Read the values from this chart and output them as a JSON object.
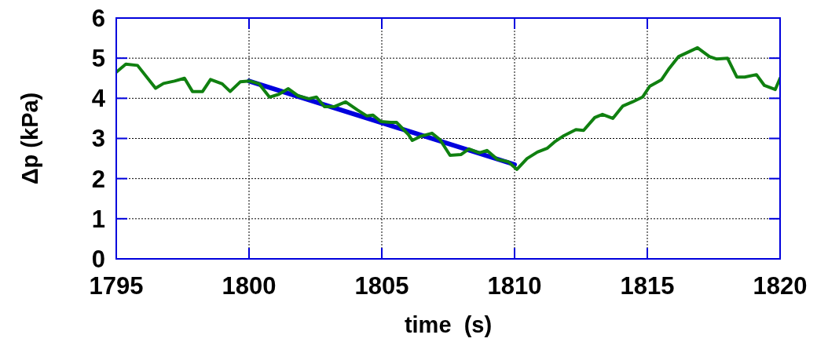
{
  "chart_data": {
    "type": "line",
    "xlabel": "time  (s)",
    "ylabel": "Δp (kPa)",
    "xlim": [
      1795,
      1820
    ],
    "xticks": [
      1795,
      1800,
      1805,
      1810,
      1815,
      1820
    ],
    "ylim": [
      0,
      6
    ],
    "yticks": [
      0,
      1,
      2,
      3,
      4,
      5,
      6
    ],
    "grid": true,
    "line_style": "solid",
    "series": [
      {
        "color": "#108010",
        "x": [
          1795.0,
          1795.36,
          1795.8,
          1796.48,
          1796.78,
          1797.19,
          1797.57,
          1797.87,
          1798.25,
          1798.55,
          1798.99,
          1799.29,
          1799.67,
          1800.03,
          1800.38,
          1800.77,
          1801.12,
          1801.48,
          1801.86,
          1802.25,
          1802.54,
          1802.84,
          1803.2,
          1803.64,
          1804.08,
          1804.44,
          1804.67,
          1804.97,
          1805.33,
          1805.56,
          1806.01,
          1806.15,
          1806.45,
          1806.89,
          1807.19,
          1807.57,
          1807.99,
          1808.28,
          1808.67,
          1808.96,
          1809.35,
          1809.76,
          1810.09,
          1810.47,
          1810.86,
          1811.24,
          1811.54,
          1811.86,
          1812.31,
          1812.6,
          1813.02,
          1813.31,
          1813.7,
          1814.08,
          1814.44,
          1814.82,
          1815.09,
          1815.53,
          1815.83,
          1816.18,
          1816.89,
          1817.34,
          1817.6,
          1818.02,
          1818.37,
          1818.67,
          1819.11,
          1819.41,
          1819.82,
          1820.0
        ],
        "values": [
          4.65,
          4.85,
          4.82,
          4.25,
          4.37,
          4.43,
          4.5,
          4.17,
          4.17,
          4.47,
          4.36,
          4.17,
          4.41,
          4.43,
          4.36,
          4.03,
          4.1,
          4.24,
          4.06,
          3.99,
          4.03,
          3.79,
          3.79,
          3.91,
          3.71,
          3.56,
          3.58,
          3.42,
          3.4,
          3.4,
          3.09,
          2.95,
          3.05,
          3.13,
          2.97,
          2.58,
          2.6,
          2.74,
          2.64,
          2.7,
          2.48,
          2.42,
          2.23,
          2.5,
          2.66,
          2.76,
          2.93,
          3.07,
          3.22,
          3.2,
          3.52,
          3.6,
          3.5,
          3.81,
          3.91,
          4.03,
          4.3,
          4.46,
          4.75,
          5.04,
          5.26,
          5.04,
          4.98,
          5.0,
          4.53,
          4.53,
          4.59,
          4.32,
          4.22,
          4.5
        ]
      },
      {
        "color": "#0000dd",
        "x": [
          1800,
          1810
        ],
        "values": [
          4.43,
          2.35
        ]
      }
    ]
  }
}
